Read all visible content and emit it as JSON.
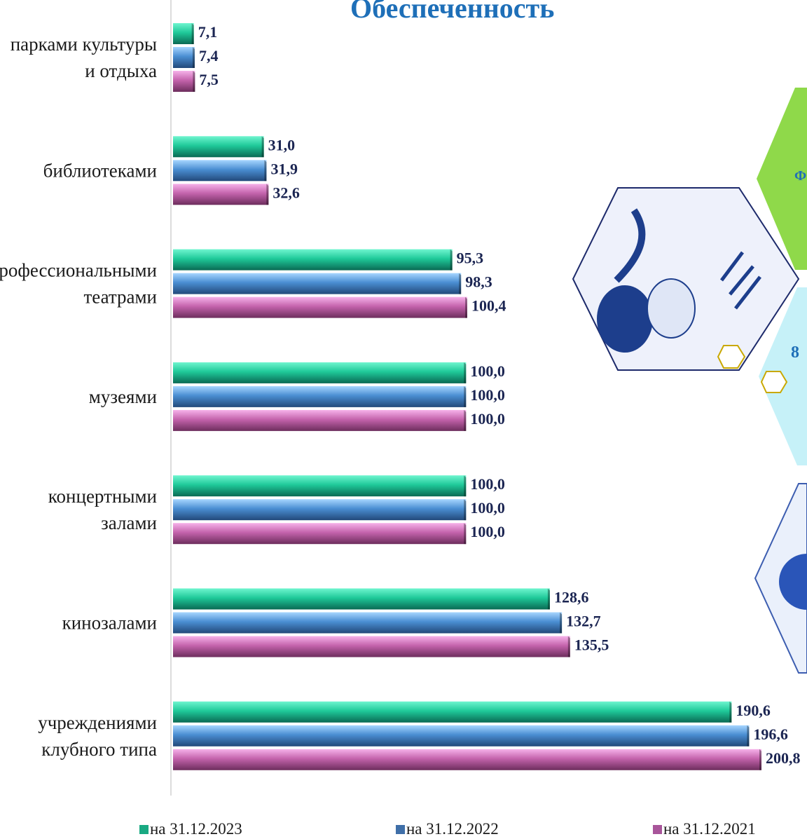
{
  "chart_data": {
    "type": "bar",
    "orientation": "horizontal",
    "title": "Обеспеченность",
    "categories": [
      [
        "парками культуры",
        "и отдыха"
      ],
      [
        "библиотеками"
      ],
      [
        "профессиональными",
        "театрами"
      ],
      [
        "музеями"
      ],
      [
        "концертными",
        "залами"
      ],
      [
        "кинозалами"
      ],
      [
        "учреждениями",
        "клубного типа"
      ]
    ],
    "series": [
      {
        "name": "на 31.12.2023",
        "color": "#19c79a",
        "values": [
          7.1,
          31.0,
          95.3,
          100.0,
          100.0,
          128.6,
          190.6
        ],
        "labels": [
          "7,1",
          "31,0",
          "95,3",
          "100,0",
          "100,0",
          "128,6",
          "190,6"
        ]
      },
      {
        "name": "на 31.12.2022",
        "color": "#3f84c8",
        "values": [
          7.4,
          31.9,
          98.3,
          100.0,
          100.0,
          132.7,
          196.6
        ],
        "labels": [
          "7,4",
          "31,9",
          "98,3",
          "100,0",
          "100,0",
          "132,7",
          "196,6"
        ]
      },
      {
        "name": "на 31.12.2021",
        "color": "#c25aa8",
        "values": [
          7.5,
          32.6,
          100.4,
          100.0,
          100.0,
          135.5,
          200.8
        ],
        "labels": [
          "7,5",
          "32,6",
          "100,4",
          "100,0",
          "100,0",
          "135,5",
          "200,8"
        ]
      }
    ],
    "xlim": [
      0,
      200.8
    ],
    "grid": false,
    "legend_position": "bottom"
  },
  "decoration": {
    "side_text_1": "Ф",
    "side_text_2": "8",
    "colors": {
      "green": "#8fd94a",
      "cyan": "#bff0f7",
      "navy": "#1d2a6b",
      "gold": "#c9a800"
    }
  }
}
